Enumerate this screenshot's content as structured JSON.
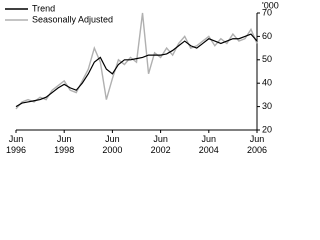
{
  "chart_data": {
    "type": "line",
    "y_label": "'000",
    "x": [
      1996.5,
      1996.75,
      1997,
      1997.25,
      1997.5,
      1997.75,
      1998,
      1998.25,
      1998.5,
      1998.75,
      1999,
      1999.25,
      1999.5,
      1999.75,
      2000,
      2000.25,
      2000.5,
      2000.75,
      2001,
      2001.25,
      2001.5,
      2001.75,
      2002,
      2002.25,
      2002.5,
      2002.75,
      2003,
      2003.25,
      2003.5,
      2003.75,
      2004,
      2004.25,
      2004.5,
      2004.75,
      2005,
      2005.25,
      2005.5,
      2005.75,
      2006,
      2006.25,
      2006.5
    ],
    "series": [
      {
        "name": "Trend",
        "color": "#000000",
        "values": [
          30,
          31.5,
          32,
          32.5,
          33,
          34,
          36,
          38,
          39.5,
          38,
          37,
          40,
          44,
          49,
          51,
          46,
          44,
          48,
          50,
          50,
          50.5,
          51,
          52,
          52,
          52,
          52.5,
          54,
          56,
          58,
          56,
          55,
          57,
          59,
          58,
          57,
          58,
          59,
          59,
          60,
          61,
          58
        ]
      },
      {
        "name": "Seasonally Adjusted",
        "color": "#b0b0b0",
        "values": [
          29,
          32,
          33,
          32,
          34,
          33,
          37,
          39,
          41,
          37,
          36,
          41,
          46,
          55,
          49,
          33,
          42,
          50,
          48,
          51,
          49,
          70,
          44,
          53,
          51,
          55,
          52,
          57,
          60,
          55,
          56,
          58,
          60,
          56,
          59,
          57,
          61,
          58,
          59,
          63,
          57
        ]
      }
    ],
    "xlim": [
      1996.5,
      2006.5
    ],
    "xticks": [
      {
        "value": 1996.5,
        "label": "Jun 1996"
      },
      {
        "value": 1998.5,
        "label": "Jun 1998"
      },
      {
        "value": 2000.5,
        "label": "Jun 2000"
      },
      {
        "value": 2002.5,
        "label": "Jun 2002"
      },
      {
        "value": 2004.5,
        "label": "Jun 2004"
      },
      {
        "value": 2006.5,
        "label": "Jun 2006"
      }
    ],
    "ylim": [
      20,
      70
    ],
    "yticks": [
      20,
      30,
      40,
      50,
      60,
      70
    ],
    "legend": "top-left"
  }
}
